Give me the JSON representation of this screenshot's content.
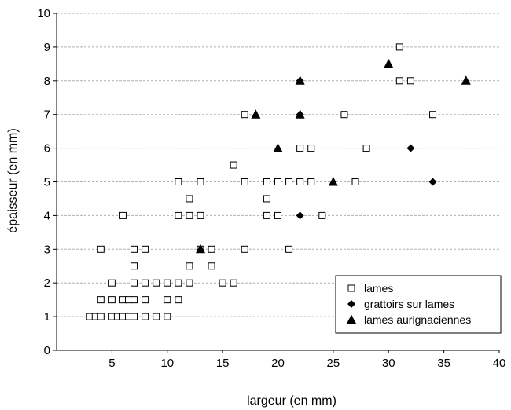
{
  "chart_data": {
    "type": "scatter",
    "xlabel": "largeur (en mm)",
    "ylabel": "épaisseur (en mm)",
    "xlim": [
      0,
      40
    ],
    "ylim": [
      0,
      10
    ],
    "x_ticks": [
      "5",
      "10",
      "15",
      "20",
      "25",
      "30",
      "35",
      "40"
    ],
    "y_ticks": [
      "0",
      "1",
      "2",
      "3",
      "4",
      "5",
      "6",
      "7",
      "8",
      "9",
      "10"
    ],
    "grid": "horizontal dashed",
    "legend_position": "bottom-right",
    "series": [
      {
        "name": "lames",
        "marker": "open-square",
        "color": "#000000",
        "points": [
          [
            3,
            1
          ],
          [
            3.5,
            1
          ],
          [
            4,
            1
          ],
          [
            4,
            1.5
          ],
          [
            4,
            3
          ],
          [
            5,
            1
          ],
          [
            5,
            1.5
          ],
          [
            5,
            2
          ],
          [
            5.5,
            1
          ],
          [
            6,
            1
          ],
          [
            6,
            1.5
          ],
          [
            6,
            4
          ],
          [
            6.5,
            1
          ],
          [
            6.5,
            1.5
          ],
          [
            7,
            1
          ],
          [
            7,
            1.5
          ],
          [
            7,
            2
          ],
          [
            7,
            2.5
          ],
          [
            7,
            3
          ],
          [
            8,
            1
          ],
          [
            8,
            1.5
          ],
          [
            8,
            2
          ],
          [
            8,
            3
          ],
          [
            9,
            1
          ],
          [
            9,
            2
          ],
          [
            10,
            1
          ],
          [
            10,
            1.5
          ],
          [
            10,
            2
          ],
          [
            11,
            1.5
          ],
          [
            11,
            2
          ],
          [
            11,
            4
          ],
          [
            11,
            5
          ],
          [
            12,
            2
          ],
          [
            12,
            2.5
          ],
          [
            12,
            4
          ],
          [
            12,
            4.5
          ],
          [
            13,
            3
          ],
          [
            13,
            4
          ],
          [
            13,
            5
          ],
          [
            14,
            2.5
          ],
          [
            14,
            3
          ],
          [
            15,
            2
          ],
          [
            16,
            2
          ],
          [
            16,
            5.5
          ],
          [
            17,
            3
          ],
          [
            17,
            5
          ],
          [
            17,
            7
          ],
          [
            19,
            4
          ],
          [
            19,
            4.5
          ],
          [
            19,
            5
          ],
          [
            20,
            4
          ],
          [
            20,
            5
          ],
          [
            21,
            3
          ],
          [
            21,
            5
          ],
          [
            22,
            5
          ],
          [
            22,
            6
          ],
          [
            23,
            5
          ],
          [
            23,
            6
          ],
          [
            24,
            4
          ],
          [
            26,
            7
          ],
          [
            27,
            5
          ],
          [
            28,
            6
          ],
          [
            31,
            8
          ],
          [
            31,
            9
          ],
          [
            32,
            8
          ],
          [
            34,
            7
          ]
        ]
      },
      {
        "name": "grattoirs sur lames",
        "marker": "filled-diamond",
        "color": "#000000",
        "points": [
          [
            22,
            8
          ],
          [
            22,
            7
          ],
          [
            22,
            4
          ],
          [
            32,
            6
          ],
          [
            34,
            5
          ]
        ]
      },
      {
        "name": "lames aurignaciennes",
        "marker": "filled-triangle",
        "color": "#000000",
        "points": [
          [
            13,
            3
          ],
          [
            18,
            7
          ],
          [
            20,
            6
          ],
          [
            22,
            8
          ],
          [
            22,
            7
          ],
          [
            25,
            5
          ],
          [
            30,
            8.5
          ],
          [
            37,
            8
          ]
        ]
      }
    ]
  }
}
